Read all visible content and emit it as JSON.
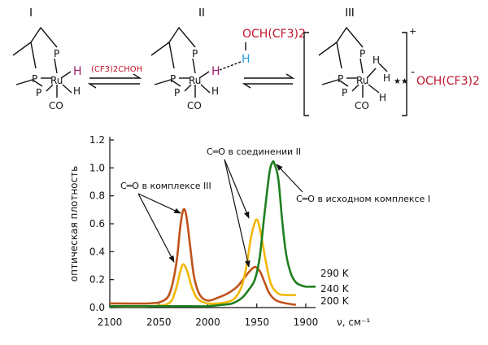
{
  "scheme": {
    "roman_labels": [
      "I",
      "II",
      "III"
    ],
    "atoms": {
      "p": "P",
      "ru": "Ru",
      "h": "H",
      "co": "CO"
    },
    "reagent": "(CF3)2CHOH",
    "alcohol_group": "OCH(CF3)2",
    "alkoxide_anion": "OCH(CF3)2",
    "cation_charge": "+",
    "anion_charge": "-",
    "dihydrogen_contact": "★★",
    "colors": {
      "red": "#c0142a",
      "magenta": "#9c1f6e",
      "blue": "#2a9fd8"
    }
  },
  "chart_data": {
    "type": "line",
    "title": "",
    "xlabel": "ν, см⁻¹",
    "ylabel": "оптическая плотность",
    "x_reversed": true,
    "xlim": [
      2100,
      1890
    ],
    "ylim": [
      0,
      1.2
    ],
    "x_ticks": [
      2100,
      2050,
      2000,
      1950,
      1900
    ],
    "y_ticks": [
      0.0,
      0.2,
      0.4,
      0.6,
      0.8,
      1.0,
      1.2
    ],
    "x_tick_labels": [
      "2100",
      "2050",
      "2000",
      "1950",
      "1900"
    ],
    "y_tick_labels": [
      "0.0",
      "0.2",
      "0.4",
      "0.6",
      "0.8",
      "1.0",
      "1.2"
    ],
    "grid": false,
    "series": [
      {
        "name": "200 K",
        "color": "#c0521b",
        "x": [
          2100,
          2060,
          2045,
          2038,
          2032,
          2028,
          2025,
          2022,
          2018,
          2014,
          2008,
          2000,
          1990,
          1980,
          1970,
          1962,
          1956,
          1952,
          1949,
          1946,
          1942,
          1937,
          1930,
          1920,
          1910
        ],
        "y": [
          0.03,
          0.03,
          0.05,
          0.12,
          0.32,
          0.58,
          0.7,
          0.66,
          0.44,
          0.22,
          0.09,
          0.05,
          0.07,
          0.1,
          0.15,
          0.22,
          0.27,
          0.29,
          0.28,
          0.25,
          0.18,
          0.1,
          0.05,
          0.03,
          0.02
        ]
      },
      {
        "name": "240 K",
        "color": "#f2b705",
        "x": [
          2100,
          2060,
          2040,
          2033,
          2028,
          2025,
          2021,
          2016,
          2010,
          2000,
          1990,
          1980,
          1972,
          1965,
          1960,
          1956,
          1952,
          1950,
          1948,
          1945,
          1940,
          1935,
          1928,
          1920,
          1910
        ],
        "y": [
          0.01,
          0.01,
          0.03,
          0.12,
          0.26,
          0.31,
          0.26,
          0.14,
          0.06,
          0.03,
          0.03,
          0.04,
          0.07,
          0.16,
          0.32,
          0.5,
          0.61,
          0.63,
          0.6,
          0.5,
          0.3,
          0.16,
          0.1,
          0.09,
          0.09
        ]
      },
      {
        "name": "290 K",
        "color": "#1f7f1f",
        "x": [
          2100,
          2060,
          2040,
          2020,
          2000,
          1985,
          1975,
          1965,
          1958,
          1952,
          1947,
          1942,
          1937,
          1934,
          1932,
          1928,
          1924,
          1920,
          1915,
          1910,
          1905,
          1900,
          1890
        ],
        "y": [
          0.01,
          0.01,
          0.01,
          0.01,
          0.01,
          0.02,
          0.03,
          0.07,
          0.13,
          0.2,
          0.36,
          0.68,
          0.97,
          1.04,
          1.03,
          0.92,
          0.62,
          0.38,
          0.24,
          0.18,
          0.16,
          0.15,
          0.15
        ]
      }
    ],
    "annotations": {
      "complex3": "C═O в комплексе III",
      "compound2": "C═O в соединении II",
      "complex1": "C═O в исходном комплексе I"
    }
  }
}
